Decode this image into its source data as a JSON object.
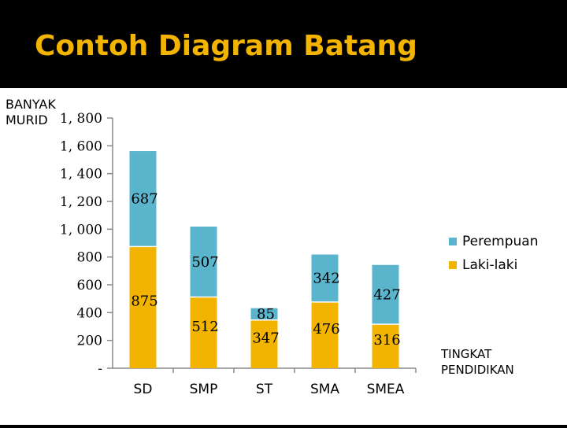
{
  "title": "Contoh Diagram Batang",
  "chart_data": {
    "type": "bar",
    "stacked": true,
    "categories": [
      "SD",
      "SMP",
      "ST",
      "SMA",
      "SMEA"
    ],
    "series": [
      {
        "name": "Laki-laki",
        "color": "#f2b400",
        "values": [
          875,
          512,
          347,
          476,
          316
        ]
      },
      {
        "name": "Perempuan",
        "color": "#5ab4cc",
        "values": [
          687,
          507,
          85,
          342,
          427
        ]
      }
    ],
    "ylabel_lines": [
      "BANYAK",
      "MURID"
    ],
    "xlabel_lines": [
      "TINGKAT",
      "PENDIDIKAN"
    ],
    "ylim": [
      0,
      1800
    ],
    "yticks": [
      0,
      200,
      400,
      600,
      800,
      1000,
      1200,
      1400,
      1600,
      1800
    ],
    "ytick_labels": [
      "-",
      "200",
      "400",
      "600",
      "800",
      "1, 000",
      "1, 200",
      "1, 400",
      "1, 600",
      "1, 800"
    ],
    "legend_position": "right",
    "grid": false
  }
}
